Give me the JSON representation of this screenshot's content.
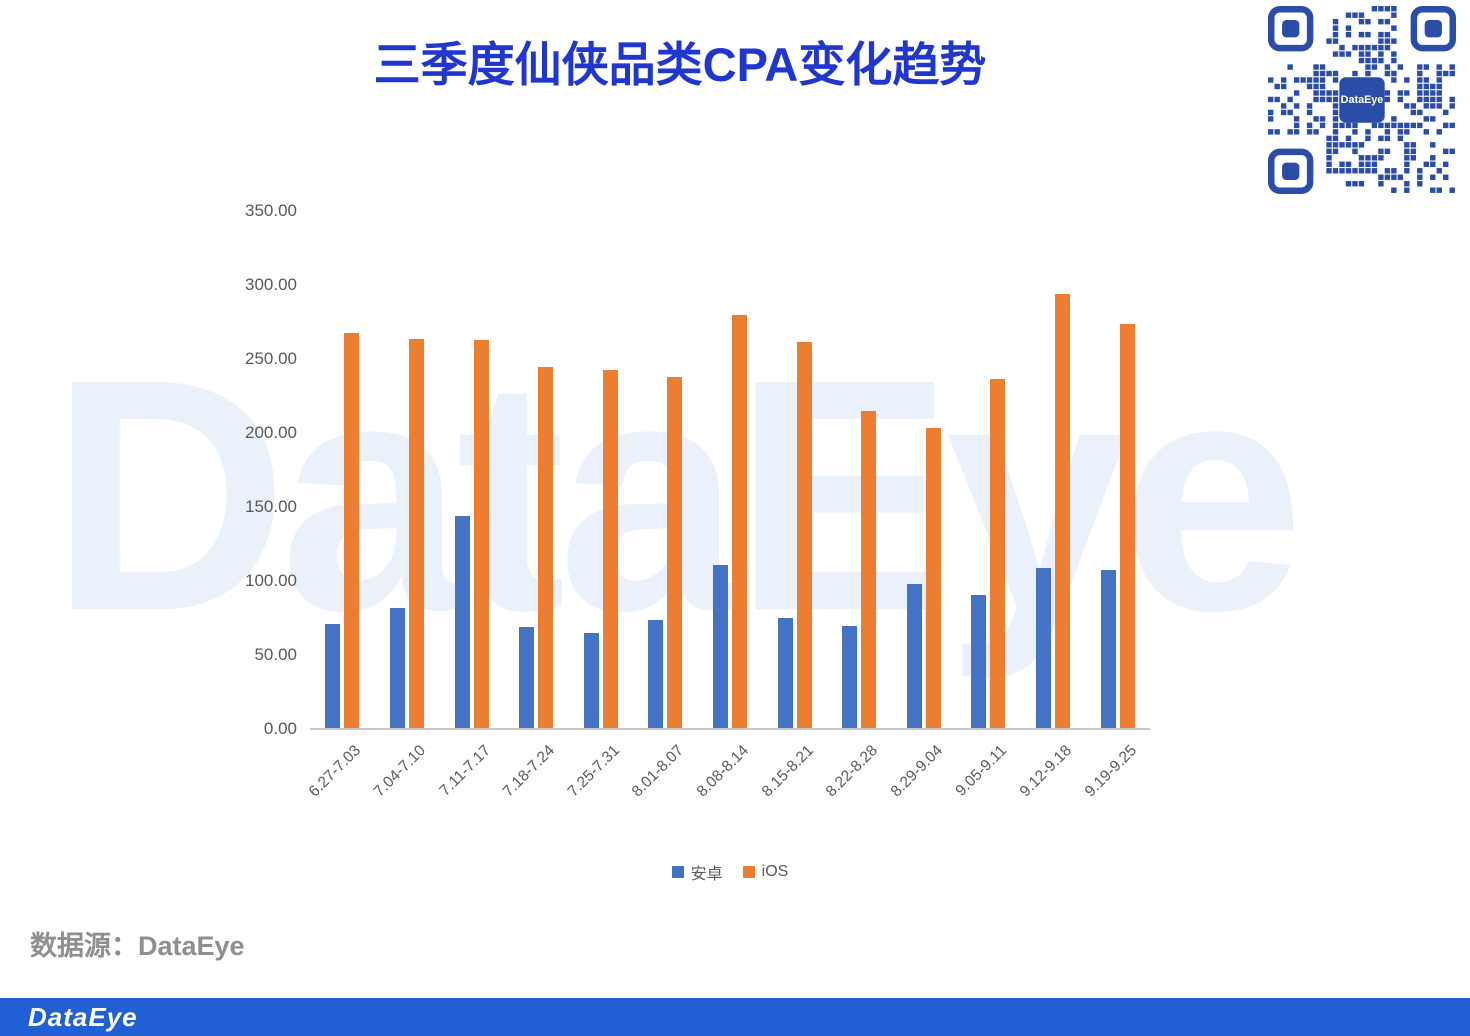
{
  "page": {
    "title": "三季度仙侠品类CPA变化趋势",
    "source_label": "数据源：DataEye",
    "watermark": "DataEye",
    "footer_brand": "DataEye",
    "qr_center_label": "DataEye"
  },
  "colors": {
    "title_blue": "#1f36cf",
    "android_blue": "#4472C4",
    "ios_orange": "#ED7D31",
    "footer_blue": "#2160d4",
    "qr_blue": "#2a4da8",
    "watermark_blue": "#eaf1fb",
    "axis_text": "#595959",
    "source_gray": "#8f8f8f"
  },
  "chart_data": {
    "type": "bar",
    "title": "三季度仙侠品类CPA变化趋势",
    "categories": [
      "6.27-7.03",
      "7.04-7.10",
      "7.11-7.17",
      "7.18-7.24",
      "7.25-7.31",
      "8.01-8.07",
      "8.08-8.14",
      "8.15-8.21",
      "8.22-8.28",
      "8.29-9.04",
      "9.05-9.11",
      "9.12-9.18",
      "9.19-9.25"
    ],
    "series": [
      {
        "name": "安卓",
        "color": "#4472C4",
        "values": [
          70,
          81,
          143,
          68,
          64,
          73,
          110,
          74,
          69,
          97,
          90,
          108,
          107
        ]
      },
      {
        "name": "iOS",
        "color": "#ED7D31",
        "values": [
          267,
          263,
          262,
          244,
          242,
          237,
          279,
          261,
          214,
          203,
          236,
          293,
          273
        ]
      }
    ],
    "ylim": [
      0,
      350
    ],
    "ytick_step": 50,
    "ytick_decimals": 2,
    "grid": false,
    "legend_position": "bottom"
  }
}
